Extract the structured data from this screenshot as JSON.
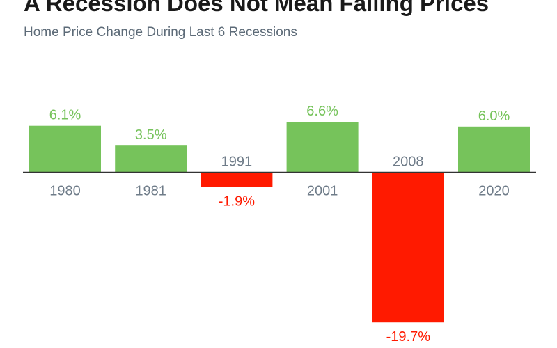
{
  "title": "A Recession Does Not Mean Falling Prices",
  "subtitle": "Home Price Change During Last 6 Recessions",
  "colors": {
    "positive": "#76c35b",
    "negative": "#ff1a00",
    "category_label": "#6f7c89",
    "baseline": "#333333"
  },
  "chart_data": {
    "type": "bar",
    "title": "A Recession Does Not Mean Falling Prices",
    "subtitle": "Home Price Change During Last 6 Recessions",
    "categories": [
      "1980",
      "1981",
      "1991",
      "2001",
      "2008",
      "2020"
    ],
    "values": [
      6.1,
      3.5,
      -1.9,
      6.6,
      -19.7,
      6.0
    ],
    "value_labels": [
      "6.1%",
      "3.5%",
      "-1.9%",
      "6.6%",
      "-19.7%",
      "6.0%"
    ],
    "xlabel": "",
    "ylabel": "",
    "grid": false,
    "legend": "none"
  }
}
